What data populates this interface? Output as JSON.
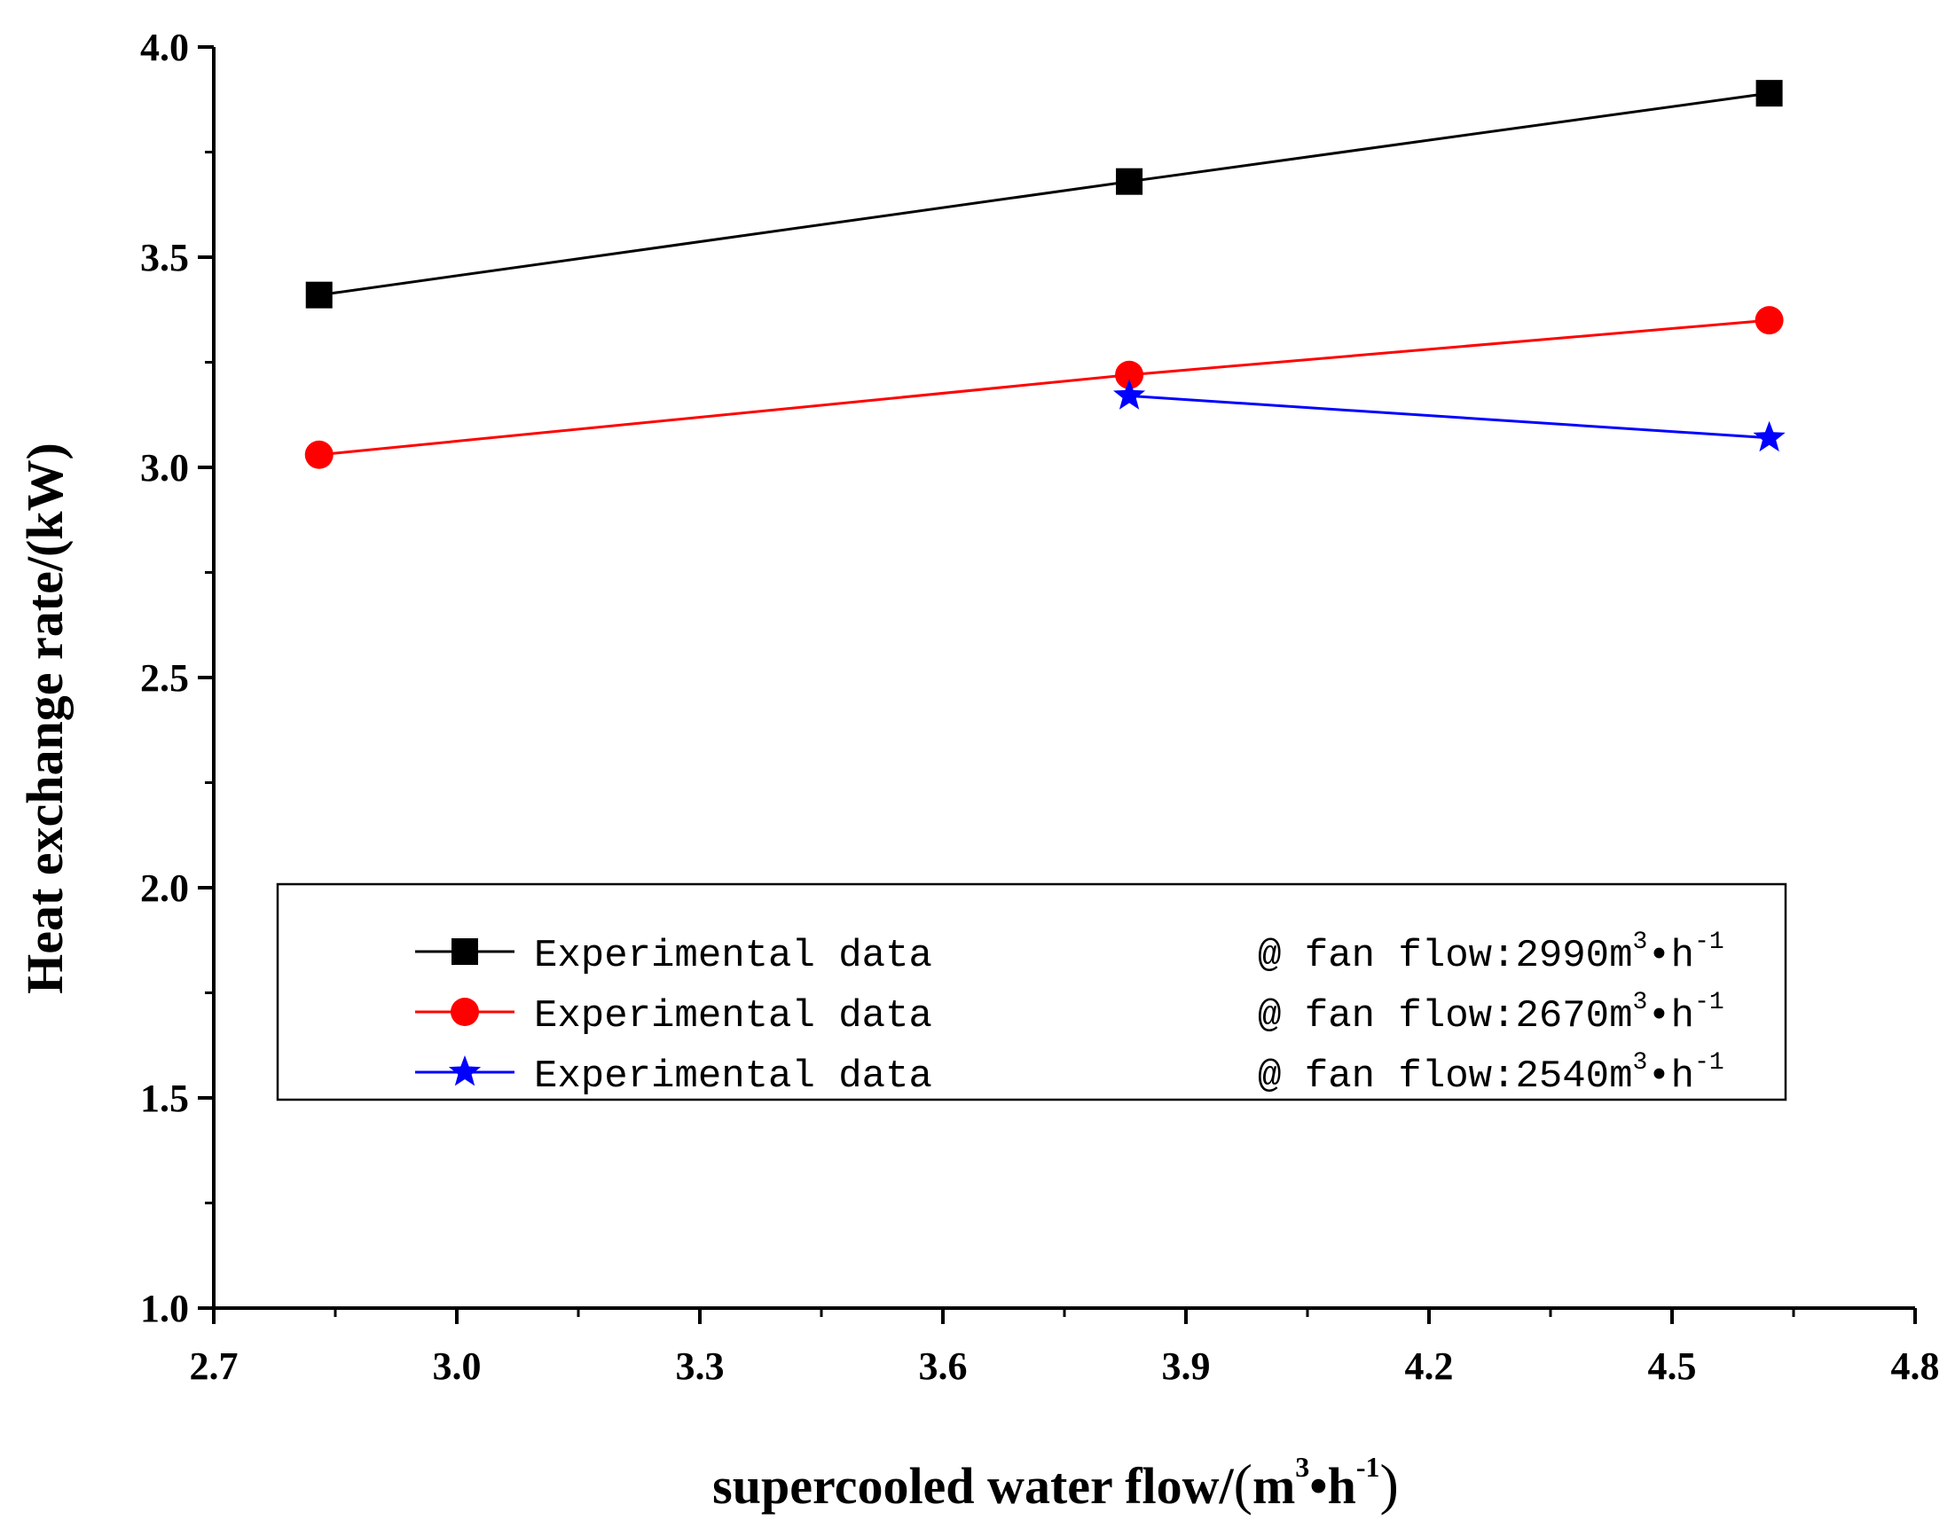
{
  "chart_data": {
    "type": "line",
    "title": "",
    "xlabel": {
      "main": "supercooled water flow/",
      "open": "(",
      "m": "m",
      "m_sup": "3",
      "bullet": "•",
      "h": "h",
      "h_sup": "-1",
      "close": ")"
    },
    "ylabel": "Heat exchange rate/(kW)",
    "xlim": [
      2.7,
      4.8
    ],
    "ylim": [
      1.0,
      4.0
    ],
    "xticks": [
      "2.7",
      "3.0",
      "3.3",
      "3.6",
      "3.9",
      "4.2",
      "4.5",
      "4.8"
    ],
    "yticks": [
      "1.0",
      "1.5",
      "2.0",
      "2.5",
      "3.0",
      "3.5",
      "4.0"
    ],
    "grid": false,
    "legend_position": "lower-center",
    "series": [
      {
        "name": "Experimental data",
        "condition": "@ fan flow:2990m",
        "cond_sup_m": "3",
        "cond_bullet": "•h",
        "cond_sup_h": "-1",
        "color": "#000000",
        "marker": "square",
        "x": [
          2.83,
          3.83,
          4.62
        ],
        "y": [
          3.41,
          3.68,
          3.89
        ]
      },
      {
        "name": "Experimental data",
        "condition": "@ fan flow:2670m",
        "cond_sup_m": "3",
        "cond_bullet": "•h",
        "cond_sup_h": "-1",
        "color": "#ff0000",
        "marker": "circle",
        "x": [
          2.83,
          3.83,
          4.62
        ],
        "y": [
          3.03,
          3.22,
          3.35
        ]
      },
      {
        "name": "Experimental data",
        "condition": "@ fan flow:2540m",
        "cond_sup_m": "3",
        "cond_bullet": "•h",
        "cond_sup_h": "-1",
        "color": "#0000ff",
        "marker": "star",
        "x": [
          3.83,
          4.62
        ],
        "y": [
          3.17,
          3.07
        ]
      }
    ]
  }
}
